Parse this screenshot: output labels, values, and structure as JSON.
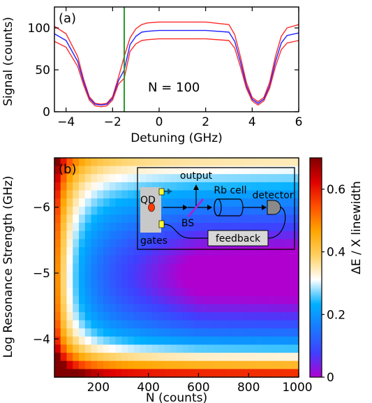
{
  "chart_data": [
    {
      "panel": "(a)",
      "type": "line",
      "xlabel": "Detuning (GHz)",
      "ylabel": "Signal (counts)",
      "xlim": [
        -4.5,
        6
      ],
      "ylim": [
        0,
        125
      ],
      "xticks": [
        -4,
        -2,
        0,
        2,
        4,
        6
      ],
      "yticks": [
        0,
        50,
        100
      ],
      "annotation": "N = 100",
      "vertical_line": {
        "x": -1.5,
        "color": "#2a9a2a"
      },
      "series": [
        {
          "color": "#ff2a2a",
          "x": [
            -4.5,
            -4,
            -3.5,
            -3.25,
            -3,
            -2.75,
            -2.5,
            -2.25,
            -2,
            -1.75,
            -1.5,
            -1.25,
            -1,
            -0.75,
            -0.5,
            0,
            1,
            2,
            3,
            3.25,
            3.5,
            3.75,
            4,
            4.25,
            4.5,
            4.75,
            5,
            5.25,
            5.5,
            6
          ],
          "y": [
            102,
            93,
            66,
            39,
            18,
            10,
            9,
            10,
            18,
            41,
            66,
            88,
            99,
            104,
            106,
            107,
            107,
            107,
            104,
            92,
            65,
            35,
            17,
            12,
            17,
            35,
            66,
            90,
            100,
            104
          ]
        },
        {
          "color": "#2222ff",
          "x": [
            -4.5,
            -4,
            -3.5,
            -3.25,
            -3,
            -2.75,
            -2.5,
            -2.25,
            -2,
            -1.75,
            -1.5,
            -1.25,
            -1,
            -0.75,
            -0.5,
            0,
            1,
            2,
            3,
            3.25,
            3.5,
            3.75,
            4,
            4.25,
            4.5,
            4.75,
            5,
            5.25,
            5.5,
            6
          ],
          "y": [
            93,
            85,
            60,
            36,
            16,
            9,
            8,
            9,
            16,
            37,
            50,
            80,
            90,
            95,
            96,
            97,
            97,
            97,
            95,
            84,
            59,
            31,
            15,
            10,
            15,
            31,
            60,
            82,
            91,
            94
          ]
        },
        {
          "color": "#ff2a2a",
          "x": [
            -4.5,
            -4,
            -3.5,
            -3.25,
            -3,
            -2.75,
            -2.5,
            -2.25,
            -2,
            -1.75,
            -1.5,
            -1.25,
            -1,
            -0.75,
            -0.5,
            0,
            1,
            2,
            3,
            3.25,
            3.5,
            3.75,
            4,
            4.25,
            4.5,
            4.75,
            5,
            5.25,
            5.5,
            6
          ],
          "y": [
            84,
            77,
            54,
            32,
            14,
            7,
            6,
            7,
            14,
            33,
            40,
            72,
            81,
            85,
            86,
            87,
            87,
            87,
            85,
            76,
            53,
            28,
            13,
            8,
            13,
            28,
            54,
            74,
            82,
            85
          ]
        }
      ]
    },
    {
      "panel": "(b)",
      "type": "heatmap",
      "xlabel": "N (counts)",
      "ylabel": "Log Resonance Strength (GHz)",
      "xlim": [
        25,
        1000
      ],
      "ylim": [
        -3.42,
        -6.75
      ],
      "xticks": [
        200,
        400,
        600,
        800,
        1000
      ],
      "yticks": [
        -6,
        -5,
        -4
      ],
      "colorbar": {
        "label": "ΔE / X linewidth",
        "range": [
          0,
          0.7
        ],
        "ticks": [
          0,
          0.2,
          0.4,
          0.6
        ],
        "colormap": [
          "#b000d0",
          "#4040ff",
          "#1a78ff",
          "#00b0ff",
          "#ffffff",
          "#ffd060",
          "#ffa500",
          "#ff5000",
          "#e00000",
          "#800000"
        ]
      },
      "surface_model": "value rises toward small N and toward both ends of the log-strength axis; minimum ~0.1 near N=1000, log strength -5",
      "inset": {
        "labels": {
          "output": "output",
          "qd": "QD",
          "rb_cell": "Rb cell",
          "detector": "detector",
          "bs": "BS",
          "gates": "gates",
          "feedback": "feedback"
        }
      }
    }
  ]
}
